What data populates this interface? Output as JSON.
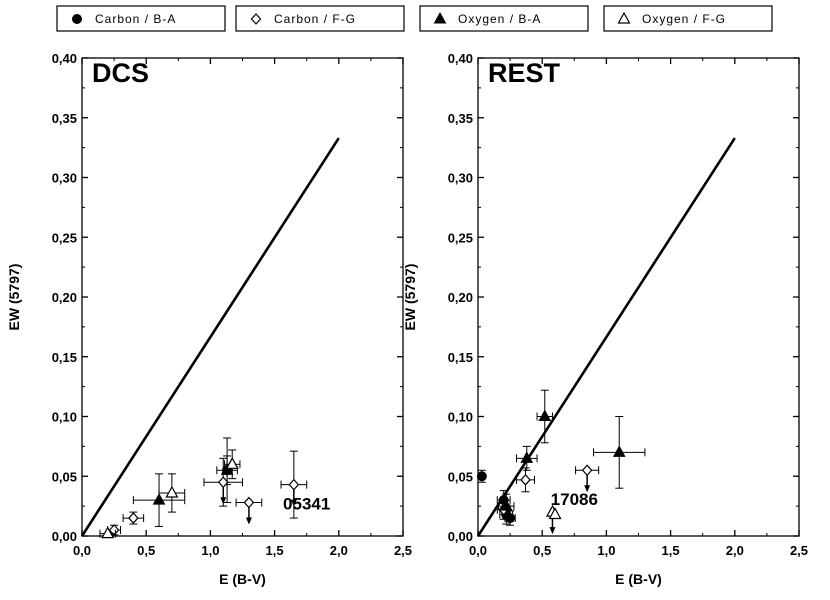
{
  "legend": {
    "placement": "top",
    "entries": [
      {
        "label": "Carbon / B-A",
        "marker": "filled-circle"
      },
      {
        "label": "Carbon / F-G",
        "marker": "open-diamond"
      },
      {
        "label": "Oxygen / B-A",
        "marker": "filled-triangle"
      },
      {
        "label": "Oxygen / F-G",
        "marker": "open-triangle"
      }
    ]
  },
  "chart_data": [
    {
      "type": "scatter",
      "title": "DCS",
      "xlabel": "E (B-V)",
      "ylabel": "EW (5797)",
      "xlim": [
        0,
        2.5
      ],
      "ylim": [
        0,
        0.4
      ],
      "xticks": [
        "0,0",
        "0,5",
        "1,0",
        "1,5",
        "2,0",
        "2,5"
      ],
      "yticks": [
        "0,00",
        "0,05",
        "0,10",
        "0,15",
        "0,20",
        "0,25",
        "0,30",
        "0,35",
        "0,40"
      ],
      "grid": false,
      "line": {
        "x": [
          0,
          2.0
        ],
        "y": [
          0,
          0.333
        ]
      },
      "annotations": [
        {
          "text": "05341",
          "x": 1.75,
          "y": 0.022
        }
      ],
      "series": [
        {
          "name": "Carbon / B-A",
          "marker": "filled-circle",
          "points": [
            {
              "x": 1.13,
              "y": 0.055,
              "xerr": 0.08,
              "yerr": 0.012
            }
          ]
        },
        {
          "name": "Carbon / F-G",
          "marker": "open-diamond",
          "points": [
            {
              "x": 0.25,
              "y": 0.005,
              "xerr": 0.05,
              "yerr": 0.004
            },
            {
              "x": 0.4,
              "y": 0.015,
              "xerr": 0.08,
              "yerr": 0.005
            },
            {
              "x": 1.1,
              "y": 0.045,
              "xerr": 0.15,
              "yerr": 0.02,
              "upper_limit": true
            },
            {
              "x": 1.3,
              "y": 0.028,
              "xerr": 0.1,
              "upper_limit": true
            },
            {
              "x": 1.65,
              "y": 0.043,
              "xerr": 0.1,
              "yerr": 0.028,
              "upper_limit": true
            }
          ]
        },
        {
          "name": "Oxygen / B-A",
          "marker": "filled-triangle",
          "points": [
            {
              "x": 0.6,
              "y": 0.03,
              "xerr": 0.2,
              "yerr": 0.022
            },
            {
              "x": 1.13,
              "y": 0.055,
              "yerr": 0.027
            }
          ]
        },
        {
          "name": "Oxygen / F-G",
          "marker": "open-triangle",
          "points": [
            {
              "x": 0.2,
              "y": 0.002,
              "xerr": 0.06
            },
            {
              "x": 0.7,
              "y": 0.036,
              "xerr": 0.1,
              "yerr": 0.016
            },
            {
              "x": 1.17,
              "y": 0.06,
              "xerr": 0.06,
              "yerr": 0.012
            }
          ]
        }
      ]
    },
    {
      "type": "scatter",
      "title": "REST",
      "xlabel": "E (B-V)",
      "ylabel": "EW (5797)",
      "xlim": [
        0,
        2.5
      ],
      "ylim": [
        0,
        0.4
      ],
      "xticks": [
        "0,0",
        "0,5",
        "1,0",
        "1,5",
        "2,0",
        "2,5"
      ],
      "yticks": [
        "0,00",
        "0,05",
        "0,10",
        "0,15",
        "0,20",
        "0,25",
        "0,30",
        "0,35",
        "0,40"
      ],
      "grid": false,
      "line": {
        "x": [
          0,
          2.0
        ],
        "y": [
          0,
          0.333
        ]
      },
      "annotations": [
        {
          "text": "17086",
          "x": 0.75,
          "y": 0.026
        }
      ],
      "series": [
        {
          "name": "Carbon / B-A",
          "marker": "filled-circle",
          "points": [
            {
              "x": 0.03,
              "y": 0.05,
              "yerr": 0.005
            },
            {
              "x": 0.2,
              "y": 0.03,
              "xerr": 0.05,
              "yerr": 0.008
            },
            {
              "x": 0.22,
              "y": 0.018,
              "xerr": 0.05,
              "yerr": 0.008
            },
            {
              "x": 0.25,
              "y": 0.015,
              "xerr": 0.04,
              "yerr": 0.006
            }
          ]
        },
        {
          "name": "Carbon / F-G",
          "marker": "open-diamond",
          "points": [
            {
              "x": 0.2,
              "y": 0.022,
              "xerr": 0.05,
              "yerr": 0.008
            },
            {
              "x": 0.37,
              "y": 0.047,
              "xerr": 0.07,
              "yerr": 0.01
            },
            {
              "x": 0.85,
              "y": 0.055,
              "xerr": 0.09,
              "upper_limit": true
            }
          ]
        },
        {
          "name": "Oxygen / B-A",
          "marker": "filled-triangle",
          "points": [
            {
              "x": 0.22,
              "y": 0.025,
              "xerr": 0.06,
              "yerr": 0.01
            },
            {
              "x": 0.38,
              "y": 0.065,
              "xerr": 0.08,
              "yerr": 0.01
            },
            {
              "x": 0.52,
              "y": 0.1,
              "xerr": 0.06,
              "yerr": 0.022
            },
            {
              "x": 1.1,
              "y": 0.07,
              "xerr": 0.2,
              "yerr": 0.03
            }
          ]
        },
        {
          "name": "Oxygen / F-G",
          "marker": "open-triangle",
          "points": [
            {
              "x": 0.58,
              "y": 0.02,
              "upper_limit": true
            },
            {
              "x": 0.6,
              "y": 0.018
            }
          ]
        }
      ]
    }
  ]
}
